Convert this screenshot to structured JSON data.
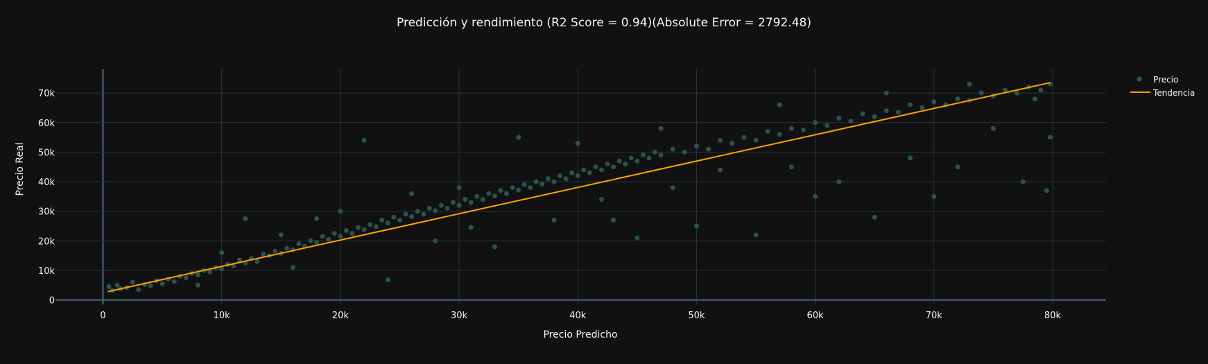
{
  "chart_data": {
    "type": "scatter",
    "title": "Predicción y rendimiento (R2 Score = 0.94)(Absolute Error = 2792.48)",
    "xlabel": "Precio Predicho",
    "ylabel": "Precio Real",
    "xlim": [
      -4000,
      84500
    ],
    "ylim": [
      -1500,
      78000
    ],
    "x_ticks": [
      0,
      10000,
      20000,
      30000,
      40000,
      50000,
      60000,
      70000,
      80000
    ],
    "x_tick_labels": [
      "0",
      "10k",
      "20k",
      "30k",
      "40k",
      "50k",
      "60k",
      "70k",
      "80k"
    ],
    "y_ticks": [
      0,
      10000,
      20000,
      30000,
      40000,
      50000,
      60000,
      70000
    ],
    "y_tick_labels": [
      "0",
      "10k",
      "20k",
      "30k",
      "40k",
      "50k",
      "60k",
      "70k"
    ],
    "grid": true,
    "legend_position": "top-right",
    "colors": {
      "background": "#111111",
      "grid": "#283442",
      "points": "#2e5a55",
      "trend": "#ffa500",
      "text": "#f2f5fa"
    },
    "series": [
      {
        "name": "Precio",
        "type": "scatter",
        "points": [
          [
            500,
            4500
          ],
          [
            800,
            3200
          ],
          [
            1200,
            5000
          ],
          [
            1500,
            3800
          ],
          [
            2000,
            4200
          ],
          [
            2500,
            6000
          ],
          [
            3000,
            3500
          ],
          [
            3500,
            5200
          ],
          [
            4000,
            4800
          ],
          [
            4500,
            6500
          ],
          [
            5000,
            5500
          ],
          [
            5500,
            7000
          ],
          [
            6000,
            6200
          ],
          [
            6500,
            8000
          ],
          [
            7000,
            7500
          ],
          [
            7500,
            9000
          ],
          [
            8000,
            8500
          ],
          [
            8500,
            10000
          ],
          [
            9000,
            9500
          ],
          [
            9500,
            11000
          ],
          [
            10000,
            10500
          ],
          [
            10500,
            12000
          ],
          [
            11000,
            11500
          ],
          [
            11500,
            13500
          ],
          [
            12000,
            12500
          ],
          [
            12500,
            14000
          ],
          [
            13000,
            13000
          ],
          [
            13500,
            15500
          ],
          [
            14000,
            15000
          ],
          [
            14500,
            16500
          ],
          [
            15000,
            15800
          ],
          [
            15500,
            17500
          ],
          [
            16000,
            17000
          ],
          [
            16500,
            19000
          ],
          [
            17000,
            18200
          ],
          [
            17500,
            20000
          ],
          [
            18000,
            19500
          ],
          [
            18500,
            21500
          ],
          [
            19000,
            20500
          ],
          [
            19500,
            22500
          ],
          [
            20000,
            21500
          ],
          [
            20500,
            23500
          ],
          [
            21000,
            22500
          ],
          [
            21500,
            24500
          ],
          [
            22000,
            23800
          ],
          [
            22500,
            25500
          ],
          [
            23000,
            24800
          ],
          [
            23500,
            27000
          ],
          [
            24000,
            26000
          ],
          [
            24500,
            28000
          ],
          [
            25000,
            27000
          ],
          [
            25500,
            29000
          ],
          [
            26000,
            28200
          ],
          [
            26500,
            30000
          ],
          [
            27000,
            29000
          ],
          [
            27500,
            31000
          ],
          [
            28000,
            30200
          ],
          [
            28500,
            32000
          ],
          [
            29000,
            31000
          ],
          [
            29500,
            33000
          ],
          [
            30000,
            32000
          ],
          [
            30500,
            34000
          ],
          [
            31000,
            33000
          ],
          [
            31500,
            35000
          ],
          [
            32000,
            34000
          ],
          [
            32500,
            36000
          ],
          [
            33000,
            35200
          ],
          [
            33500,
            37000
          ],
          [
            34000,
            36000
          ],
          [
            34500,
            38000
          ],
          [
            35000,
            37200
          ],
          [
            35500,
            39000
          ],
          [
            36000,
            38000
          ],
          [
            36500,
            40000
          ],
          [
            37000,
            39200
          ],
          [
            37500,
            41000
          ],
          [
            38000,
            40000
          ],
          [
            38500,
            42000
          ],
          [
            39000,
            41000
          ],
          [
            39500,
            43000
          ],
          [
            40000,
            42000
          ],
          [
            40500,
            44000
          ],
          [
            41000,
            43000
          ],
          [
            41500,
            45000
          ],
          [
            42000,
            44000
          ],
          [
            42500,
            46000
          ],
          [
            43000,
            45000
          ],
          [
            43500,
            47000
          ],
          [
            44000,
            46000
          ],
          [
            44500,
            48000
          ],
          [
            45000,
            47000
          ],
          [
            45500,
            49000
          ],
          [
            46000,
            48000
          ],
          [
            46500,
            50000
          ],
          [
            47000,
            49000
          ],
          [
            48000,
            51000
          ],
          [
            49000,
            50000
          ],
          [
            50000,
            52000
          ],
          [
            51000,
            51000
          ],
          [
            52000,
            54000
          ],
          [
            53000,
            53000
          ],
          [
            54000,
            55000
          ],
          [
            55000,
            54000
          ],
          [
            56000,
            57000
          ],
          [
            57000,
            56000
          ],
          [
            58000,
            58000
          ],
          [
            59000,
            57500
          ],
          [
            60000,
            60000
          ],
          [
            61000,
            59000
          ],
          [
            62000,
            61500
          ],
          [
            63000,
            60500
          ],
          [
            64000,
            63000
          ],
          [
            65000,
            62000
          ],
          [
            66000,
            64000
          ],
          [
            67000,
            63500
          ],
          [
            68000,
            66000
          ],
          [
            69000,
            65000
          ],
          [
            70000,
            67000
          ],
          [
            71000,
            66000
          ],
          [
            72000,
            68000
          ],
          [
            73000,
            67500
          ],
          [
            74000,
            70000
          ],
          [
            75000,
            69000
          ],
          [
            76000,
            71000
          ],
          [
            77000,
            70000
          ],
          [
            78000,
            72000
          ],
          [
            79000,
            71000
          ],
          [
            79800,
            73000
          ],
          [
            22000,
            54000
          ],
          [
            65000,
            28000
          ],
          [
            79500,
            37000
          ],
          [
            70000,
            35000
          ],
          [
            77500,
            40000
          ],
          [
            72000,
            45000
          ],
          [
            60000,
            35000
          ],
          [
            55000,
            22000
          ],
          [
            45000,
            21000
          ],
          [
            24000,
            6800
          ],
          [
            18000,
            27500
          ],
          [
            12000,
            27500
          ],
          [
            35000,
            55000
          ],
          [
            40000,
            53000
          ],
          [
            50000,
            25000
          ],
          [
            62000,
            40000
          ],
          [
            79800,
            55000
          ],
          [
            78500,
            68000
          ],
          [
            68000,
            48000
          ],
          [
            75000,
            58000
          ],
          [
            58000,
            45000
          ],
          [
            48000,
            38000
          ],
          [
            38000,
            27000
          ],
          [
            28000,
            20000
          ],
          [
            30000,
            38000
          ],
          [
            26000,
            36000
          ],
          [
            20000,
            30000
          ],
          [
            15000,
            22000
          ],
          [
            10000,
            16000
          ],
          [
            8000,
            5000
          ],
          [
            16000,
            11000
          ],
          [
            31000,
            24500
          ],
          [
            42000,
            34000
          ],
          [
            52000,
            44000
          ],
          [
            47000,
            58000
          ],
          [
            57000,
            66000
          ],
          [
            66000,
            70000
          ],
          [
            73000,
            73000
          ],
          [
            33000,
            18000
          ],
          [
            43000,
            27000
          ]
        ]
      },
      {
        "name": "Tendencia",
        "type": "line",
        "points": [
          [
            400,
            2800
          ],
          [
            79800,
            73500
          ]
        ]
      }
    ]
  }
}
